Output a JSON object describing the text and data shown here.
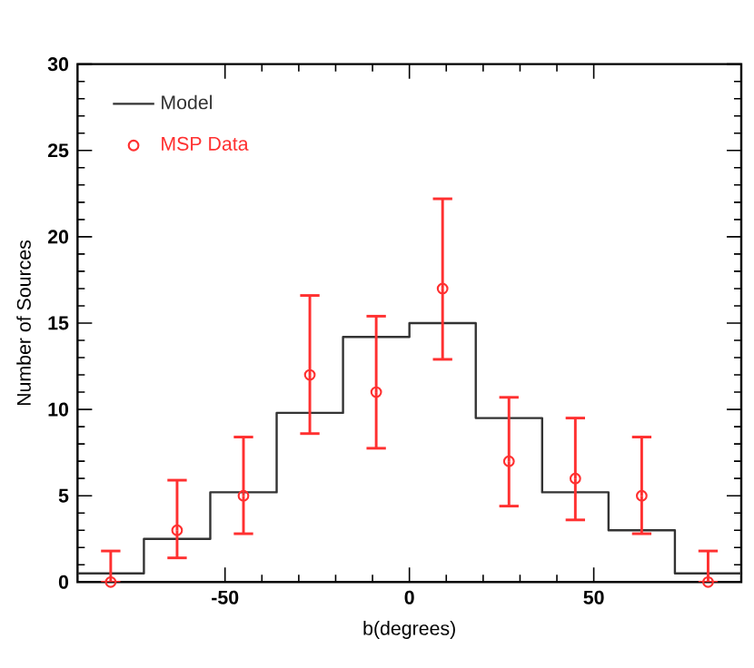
{
  "chart_data": {
    "type": "histogram",
    "xlabel": "b(degrees)",
    "ylabel": "Number of Sources",
    "xlim": [
      -90,
      90
    ],
    "ylim": [
      0,
      30
    ],
    "xticks": [
      -50,
      0,
      50
    ],
    "yticks": [
      0,
      5,
      10,
      15,
      20,
      25,
      30
    ],
    "legend": "top left",
    "grid": false,
    "series": [
      {
        "name": "Model",
        "color": "#333333",
        "line_style": "solid",
        "bins": [
          -90,
          -72,
          -54,
          -36,
          -18,
          0,
          18,
          36,
          54,
          72,
          90
        ],
        "values": [
          0.5,
          2.5,
          5.2,
          9.8,
          14.2,
          15.0,
          9.5,
          5.2,
          3.0,
          0.5
        ]
      },
      {
        "name": "MSP Data",
        "type": "scatter",
        "color": "#ff3030",
        "marker": "circle",
        "x": [
          -81,
          -63,
          -45,
          -27,
          -9,
          9,
          27,
          45,
          63,
          81
        ],
        "values": [
          0,
          3,
          5,
          12,
          11,
          17,
          7,
          6,
          5,
          0
        ],
        "errors": [
          [
            0,
            1.8
          ],
          [
            1.4,
            5.9
          ],
          [
            2.8,
            8.4
          ],
          [
            8.6,
            16.6
          ],
          [
            7.75,
            15.4
          ],
          [
            12.9,
            22.2
          ],
          [
            4.4,
            10.7
          ],
          [
            3.6,
            9.5
          ],
          [
            2.8,
            8.4
          ],
          [
            0,
            1.8
          ]
        ]
      }
    ]
  }
}
